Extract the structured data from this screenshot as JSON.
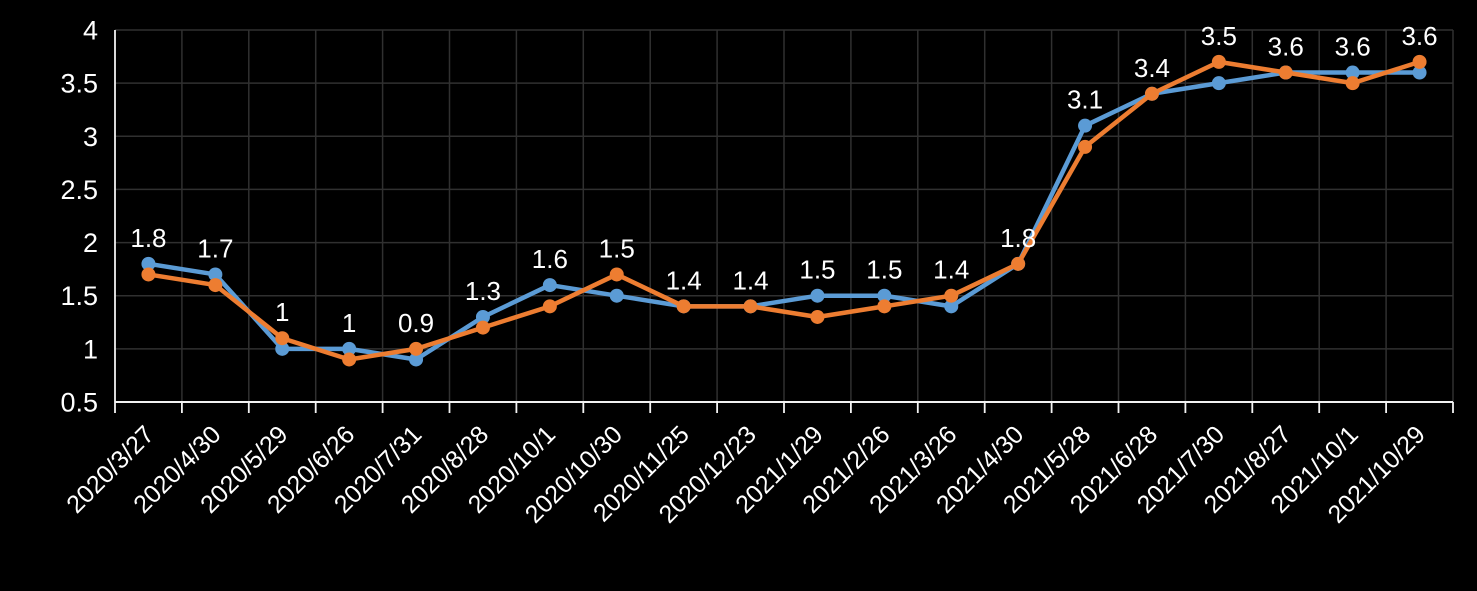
{
  "chart_data": {
    "type": "line",
    "title": "",
    "legend_position": "none",
    "grid": true,
    "categories": [
      "2020/3/27",
      "2020/4/30",
      "2020/5/29",
      "2020/6/26",
      "2020/7/31",
      "2020/8/28",
      "2020/10/1",
      "2020/10/30",
      "2020/11/25",
      "2020/12/23",
      "2021/1/29",
      "2021/2/26",
      "2021/3/26",
      "2021/4/30",
      "2021/5/28",
      "2021/6/28",
      "2021/7/30",
      "2021/8/27",
      "2021/10/1",
      "2021/10/29"
    ],
    "series": [
      {
        "name": "blue-series",
        "color": "#5B9BD5",
        "values": [
          1.8,
          1.7,
          1.0,
          1.0,
          0.9,
          1.3,
          1.6,
          1.5,
          1.4,
          1.4,
          1.5,
          1.5,
          1.4,
          1.8,
          3.1,
          3.4,
          3.5,
          3.6,
          3.6,
          3.6
        ]
      },
      {
        "name": "orange-series",
        "color": "#ED7D31",
        "values": [
          1.7,
          1.6,
          1.1,
          0.9,
          1.0,
          1.2,
          1.4,
          1.7,
          1.4,
          1.4,
          1.3,
          1.4,
          1.5,
          1.8,
          2.9,
          3.4,
          3.7,
          3.6,
          3.5,
          3.7
        ]
      }
    ],
    "data_labels": {
      "for_series": "blue-series",
      "labels": [
        "1.8",
        "1.7",
        "1",
        "1",
        "0.9",
        "1.3",
        "1.6",
        "1.5",
        "1.4",
        "1.4",
        "1.5",
        "1.5",
        "1.4",
        "1.8",
        "3.1",
        "3.4",
        "3.5",
        "3.6",
        "3.6",
        "3.6"
      ],
      "color": "#ffffff"
    },
    "y_axis": {
      "min": 0.5,
      "max": 4,
      "tick_step": 0.5,
      "tick_labels": [
        "0.5",
        "1",
        "1.5",
        "2",
        "2.5",
        "3",
        "3.5",
        "4"
      ],
      "label_color": "#ffffff"
    },
    "x_axis": {
      "label_rotation": -45,
      "label_color": "#ffffff"
    },
    "colors": {
      "background": "#000000",
      "gridline": "#303030",
      "axis": "#f2f2f2"
    }
  }
}
